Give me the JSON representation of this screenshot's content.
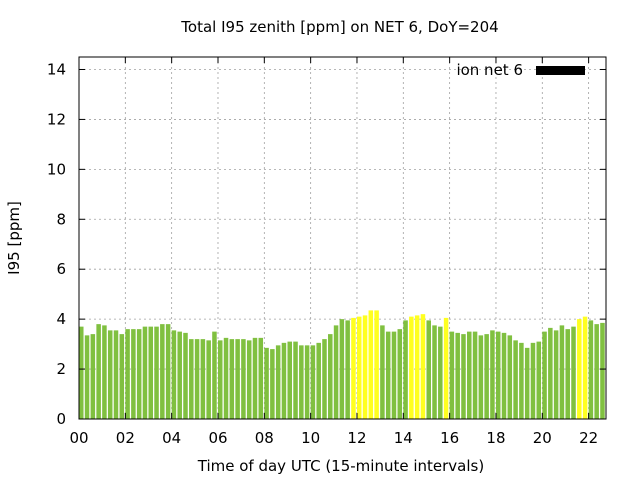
{
  "chart_data": {
    "type": "bar",
    "title": "Total I95 zenith [ppm] on NET 6, DoY=204",
    "xlabel": "Time of day UTC (15-minute intervals)",
    "ylabel": "I95 [ppm]",
    "xlim": [
      0,
      22.75
    ],
    "ylim": [
      0,
      14.5
    ],
    "x_ticks": [
      "00",
      "02",
      "04",
      "06",
      "08",
      "10",
      "12",
      "14",
      "16",
      "18",
      "20",
      "22"
    ],
    "y_ticks": [
      "0",
      "2",
      "4",
      "6",
      "8",
      "10",
      "12",
      "14"
    ],
    "grid": true,
    "legend": {
      "position": "top-right",
      "label": "ion net 6"
    },
    "bar_interval_hours": 0.25,
    "colors": {
      "normal": "#80c040",
      "elevated": "#ffff20",
      "legend_swatch": "#000000"
    },
    "values": [
      3.7,
      3.35,
      3.4,
      3.8,
      3.75,
      3.55,
      3.55,
      3.4,
      3.6,
      3.6,
      3.6,
      3.7,
      3.7,
      3.7,
      3.8,
      3.8,
      3.55,
      3.5,
      3.45,
      3.2,
      3.2,
      3.2,
      3.15,
      3.5,
      3.15,
      3.25,
      3.2,
      3.2,
      3.2,
      3.15,
      3.25,
      3.25,
      2.85,
      2.8,
      2.95,
      3.05,
      3.1,
      3.1,
      2.95,
      2.95,
      2.95,
      3.05,
      3.2,
      3.4,
      3.75,
      4.0,
      3.95,
      4.05,
      4.1,
      4.15,
      4.35,
      4.35,
      3.75,
      3.5,
      3.5,
      3.6,
      3.95,
      4.1,
      4.15,
      4.2,
      3.95,
      3.75,
      3.7,
      4.05,
      3.5,
      3.45,
      3.4,
      3.5,
      3.5,
      3.35,
      3.4,
      3.55,
      3.5,
      3.45,
      3.35,
      3.15,
      3.05,
      2.85,
      3.05,
      3.1,
      3.5,
      3.65,
      3.55,
      3.75,
      3.6,
      3.7,
      4.0,
      4.1,
      3.95,
      3.8,
      3.85
    ],
    "elevated_intervals": [
      47,
      48,
      49,
      50,
      51,
      57,
      58,
      59,
      63,
      86,
      87
    ]
  }
}
